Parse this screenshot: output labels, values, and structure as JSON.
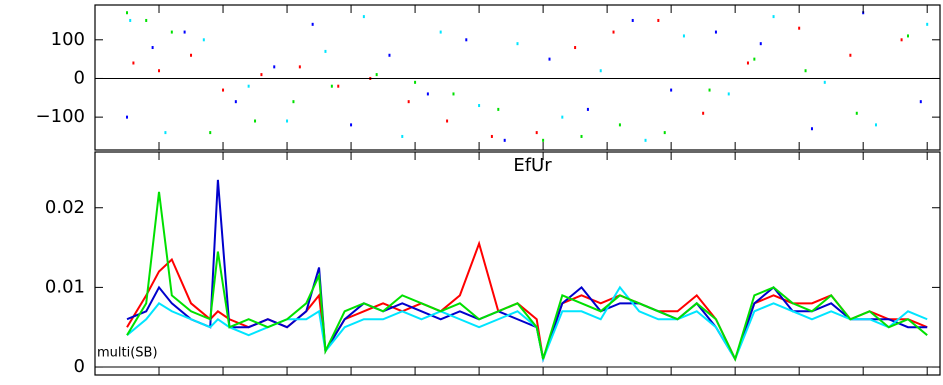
{
  "chart_data": [
    {
      "type": "scatter",
      "xlim": [
        0,
        13.2
      ],
      "xticks": [
        0,
        1,
        2,
        3,
        4,
        5,
        6,
        7,
        8,
        9,
        10,
        11,
        12,
        13
      ],
      "ylim": [
        -185,
        190
      ],
      "yticks": [
        {
          "value": -100,
          "label": "−100"
        },
        0,
        100
      ],
      "series": [
        {
          "color": "#ff0000",
          "x": [
            0.6,
            1.0,
            1.5,
            2.0,
            2.6,
            3.2,
            3.8,
            4.3,
            4.9,
            5.5,
            6.2,
            6.9,
            7.5,
            8.1,
            8.8,
            9.5,
            10.2,
            11.0,
            11.8,
            12.6
          ],
          "y": [
            40,
            20,
            60,
            -30,
            10,
            30,
            -20,
            0,
            -60,
            -110,
            -150,
            -140,
            80,
            120,
            150,
            -90,
            40,
            130,
            60,
            100
          ]
        },
        {
          "color": "#0000ff",
          "x": [
            0.5,
            0.9,
            1.4,
            2.2,
            2.8,
            3.4,
            4.0,
            4.6,
            5.2,
            5.8,
            6.4,
            7.1,
            7.7,
            8.4,
            9.0,
            9.7,
            10.4,
            11.2,
            12.0,
            12.9
          ],
          "y": [
            -100,
            80,
            120,
            -60,
            30,
            140,
            -120,
            60,
            -40,
            100,
            -160,
            50,
            -80,
            150,
            -30,
            120,
            90,
            -130,
            170,
            -60
          ]
        },
        {
          "color": "#00e5ff",
          "x": [
            0.55,
            1.1,
            1.7,
            2.4,
            3.0,
            3.6,
            4.2,
            4.8,
            5.4,
            6.0,
            6.6,
            7.3,
            7.9,
            8.6,
            9.2,
            9.9,
            10.6,
            11.4,
            12.2,
            13.0
          ],
          "y": [
            150,
            -140,
            100,
            -20,
            -110,
            70,
            160,
            -150,
            120,
            -70,
            90,
            -100,
            20,
            -160,
            110,
            -40,
            160,
            -10,
            -120,
            140
          ]
        },
        {
          "color": "#00e000",
          "x": [
            0.5,
            0.8,
            1.2,
            1.8,
            2.5,
            3.1,
            3.7,
            4.4,
            5.0,
            5.6,
            6.3,
            7.0,
            7.6,
            8.2,
            8.9,
            9.6,
            10.3,
            11.1,
            11.9,
            12.7
          ],
          "y": [
            170,
            150,
            120,
            -140,
            -110,
            -60,
            -20,
            10,
            -10,
            -40,
            -80,
            -160,
            -150,
            -120,
            -140,
            -30,
            50,
            20,
            -90,
            110
          ]
        }
      ]
    },
    {
      "type": "line",
      "title": "EfUr",
      "annotation": "multi(SB)",
      "xlim": [
        0,
        13.2
      ],
      "xticks": [
        0,
        1,
        2,
        3,
        4,
        5,
        6,
        7,
        8,
        9,
        10,
        11,
        12,
        13
      ],
      "ylim": [
        -0.001,
        0.027
      ],
      "yticks": [
        0,
        0.01,
        0.02
      ],
      "x": [
        0.5,
        0.8,
        1.0,
        1.2,
        1.5,
        1.8,
        1.92,
        2.1,
        2.4,
        2.7,
        3.0,
        3.3,
        3.5,
        3.6,
        3.9,
        4.2,
        4.5,
        4.8,
        5.1,
        5.4,
        5.7,
        6.0,
        6.3,
        6.6,
        6.9,
        7.0,
        7.3,
        7.6,
        7.9,
        8.2,
        8.5,
        8.8,
        9.1,
        9.4,
        9.7,
        10.0,
        10.3,
        10.6,
        10.9,
        11.2,
        11.5,
        11.8,
        12.1,
        12.4,
        12.7,
        13.0
      ],
      "series": [
        {
          "color": "#ff0000",
          "values": [
            0.005,
            0.009,
            0.012,
            0.0135,
            0.008,
            0.006,
            0.007,
            0.006,
            0.005,
            0.006,
            0.005,
            0.007,
            0.009,
            0.002,
            0.006,
            0.007,
            0.008,
            0.007,
            0.008,
            0.007,
            0.009,
            0.0155,
            0.007,
            0.008,
            0.006,
            0.001,
            0.008,
            0.009,
            0.008,
            0.009,
            0.008,
            0.007,
            0.007,
            0.009,
            0.006,
            0.001,
            0.008,
            0.009,
            0.008,
            0.008,
            0.009,
            0.006,
            0.007,
            0.006,
            0.006,
            0.005
          ]
        },
        {
          "color": "#0000cc",
          "values": [
            0.006,
            0.007,
            0.01,
            0.008,
            0.006,
            0.005,
            0.0235,
            0.005,
            0.005,
            0.006,
            0.005,
            0.007,
            0.0125,
            0.002,
            0.006,
            0.008,
            0.007,
            0.008,
            0.007,
            0.006,
            0.007,
            0.006,
            0.007,
            0.006,
            0.005,
            0.001,
            0.008,
            0.01,
            0.007,
            0.008,
            0.008,
            0.007,
            0.006,
            0.008,
            0.005,
            0.001,
            0.008,
            0.01,
            0.007,
            0.007,
            0.008,
            0.006,
            0.006,
            0.006,
            0.005,
            0.005
          ]
        },
        {
          "color": "#00e5ff",
          "values": [
            0.004,
            0.006,
            0.008,
            0.007,
            0.006,
            0.005,
            0.006,
            0.005,
            0.004,
            0.005,
            0.006,
            0.006,
            0.007,
            0.002,
            0.005,
            0.006,
            0.006,
            0.007,
            0.006,
            0.007,
            0.006,
            0.005,
            0.006,
            0.007,
            0.005,
            0.001,
            0.007,
            0.007,
            0.006,
            0.01,
            0.007,
            0.006,
            0.006,
            0.007,
            0.005,
            0.001,
            0.007,
            0.008,
            0.007,
            0.006,
            0.007,
            0.006,
            0.006,
            0.005,
            0.007,
            0.006
          ]
        },
        {
          "color": "#00e000",
          "values": [
            0.004,
            0.008,
            0.022,
            0.009,
            0.007,
            0.006,
            0.0145,
            0.005,
            0.006,
            0.005,
            0.006,
            0.008,
            0.0115,
            0.002,
            0.007,
            0.008,
            0.007,
            0.009,
            0.008,
            0.007,
            0.008,
            0.006,
            0.007,
            0.008,
            0.005,
            0.001,
            0.009,
            0.008,
            0.007,
            0.009,
            0.008,
            0.007,
            0.006,
            0.008,
            0.006,
            0.001,
            0.009,
            0.01,
            0.008,
            0.007,
            0.009,
            0.006,
            0.007,
            0.005,
            0.006,
            0.004
          ]
        }
      ]
    }
  ]
}
